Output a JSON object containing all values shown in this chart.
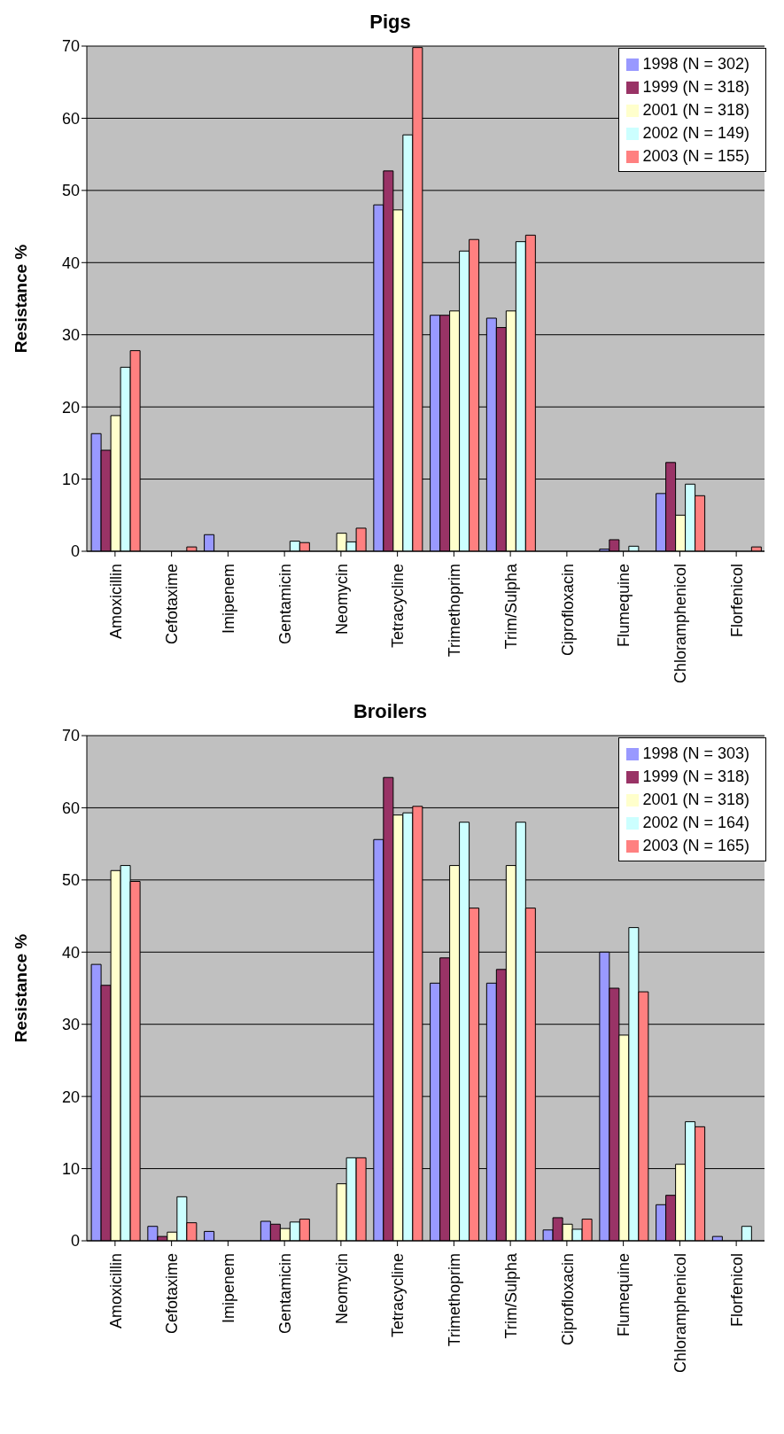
{
  "chart_data": [
    {
      "type": "bar",
      "title": "Pigs",
      "ylabel": "Resistance %",
      "categories": [
        "Amoxicillin",
        "Cefotaxime",
        "Imipenem",
        "Gentamicin",
        "Neomycin",
        "Tetracycline",
        "Trimethoprim",
        "Trim/Sulpha",
        "Ciprofloxacin",
        "Flumequine",
        "Chloramphenicol",
        "Florfenicol"
      ],
      "ylim": [
        0,
        70
      ],
      "yticks": [
        0,
        10,
        20,
        30,
        40,
        50,
        60,
        70
      ],
      "grid": "y",
      "legend": "top right",
      "series": [
        {
          "name": "1998 (N = 302)",
          "color": "#9999ff",
          "values": [
            16.3,
            0,
            2.3,
            0,
            0,
            48,
            32.7,
            32.3,
            0,
            0.3,
            8,
            0
          ]
        },
        {
          "name": "1999 (N = 318)",
          "color": "#993366",
          "values": [
            14,
            0,
            0,
            0,
            0,
            52.7,
            32.7,
            31,
            0,
            1.6,
            12.3,
            0
          ]
        },
        {
          "name": "2001 (N = 318)",
          "color": "#ffffcc",
          "values": [
            18.8,
            0,
            0,
            0,
            2.5,
            47.3,
            33.3,
            33.3,
            0,
            0,
            5,
            0
          ]
        },
        {
          "name": "2002 (N = 149)",
          "color": "#ccffff",
          "values": [
            25.5,
            0,
            0,
            1.4,
            1.3,
            57.7,
            41.6,
            42.9,
            0,
            0.7,
            9.3,
            0
          ]
        },
        {
          "name": "2003 (N = 155)",
          "color": "#ff8080",
          "values": [
            27.8,
            0.6,
            0,
            1.2,
            3.2,
            69.8,
            43.2,
            43.8,
            0,
            0,
            7.7,
            0.6
          ]
        }
      ]
    },
    {
      "type": "bar",
      "title": "Broilers",
      "ylabel": "Resistance %",
      "categories": [
        "Amoxicillin",
        "Cefotaxime",
        "Imipenem",
        "Gentamicin",
        "Neomycin",
        "Tetracycline",
        "Trimethoprim",
        "Trim/Sulpha",
        "Ciprofloxacin",
        "Flumequine",
        "Chloramphenicol",
        "Florfenicol"
      ],
      "ylim": [
        0,
        70
      ],
      "yticks": [
        0,
        10,
        20,
        30,
        40,
        50,
        60,
        70
      ],
      "grid": "y",
      "legend": "top right",
      "series": [
        {
          "name": "1998 (N = 303)",
          "color": "#9999ff",
          "values": [
            38.3,
            2,
            1.3,
            2.7,
            0,
            55.6,
            35.7,
            35.7,
            1.5,
            40,
            5,
            0.6
          ]
        },
        {
          "name": "1999 (N = 318)",
          "color": "#993366",
          "values": [
            35.4,
            0.6,
            0,
            2.3,
            0,
            64.2,
            39.2,
            37.6,
            3.2,
            35,
            6.3,
            0
          ]
        },
        {
          "name": "2001 (N = 318)",
          "color": "#ffffcc",
          "values": [
            51.3,
            1.2,
            0,
            1.7,
            7.9,
            59,
            52,
            52,
            2.3,
            28.5,
            10.6,
            0
          ]
        },
        {
          "name": "2002 (N = 164)",
          "color": "#ccffff",
          "values": [
            52,
            6.1,
            0,
            2.6,
            11.5,
            59.3,
            58,
            58,
            1.6,
            43.4,
            16.5,
            2
          ]
        },
        {
          "name": "2003 (N = 165)",
          "color": "#ff8080",
          "values": [
            49.8,
            2.5,
            0,
            3,
            11.5,
            60.2,
            46.1,
            46.1,
            3,
            34.5,
            15.8,
            0
          ]
        }
      ]
    }
  ]
}
